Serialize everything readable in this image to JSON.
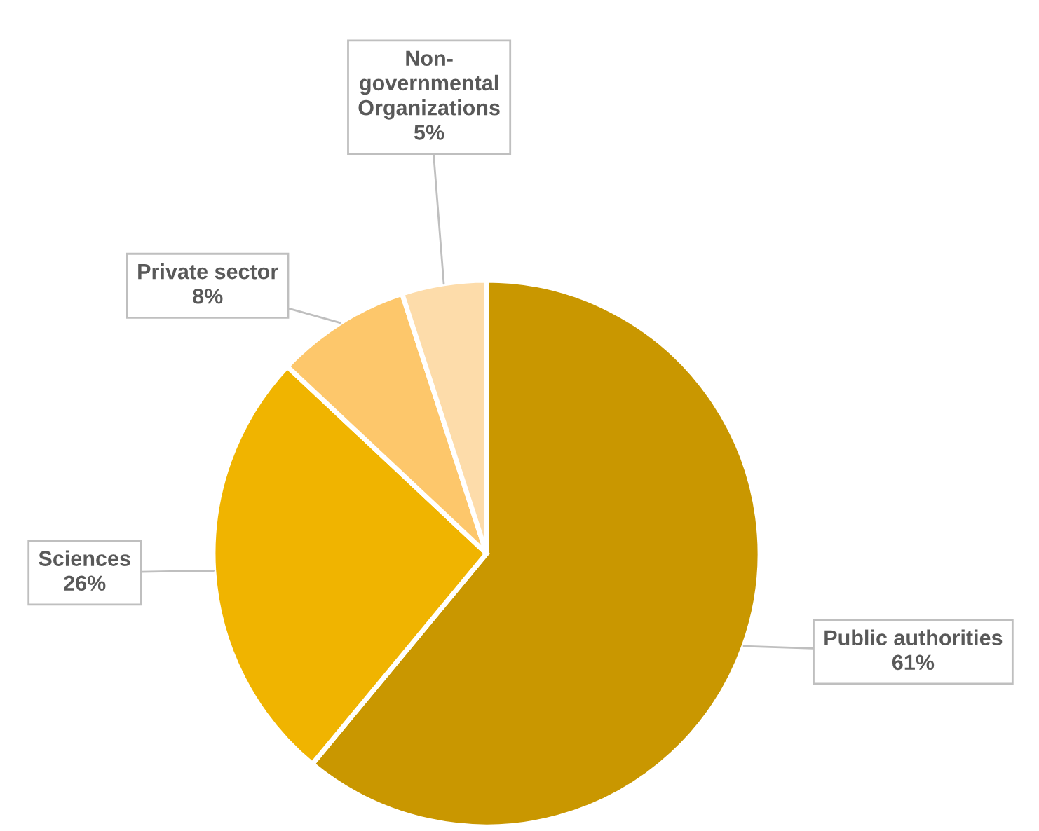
{
  "chart_data": {
    "type": "pie",
    "categories": [
      "Public authorities",
      "Sciences",
      "Private sector",
      "Non-\ngovernmental\nOrganizations"
    ],
    "values": [
      61,
      26,
      8,
      5
    ],
    "value_labels": [
      "61%",
      "26%",
      "8%",
      "5%"
    ],
    "colors": [
      "#c99700",
      "#f0b400",
      "#fdc76b",
      "#fddcaa"
    ]
  }
}
